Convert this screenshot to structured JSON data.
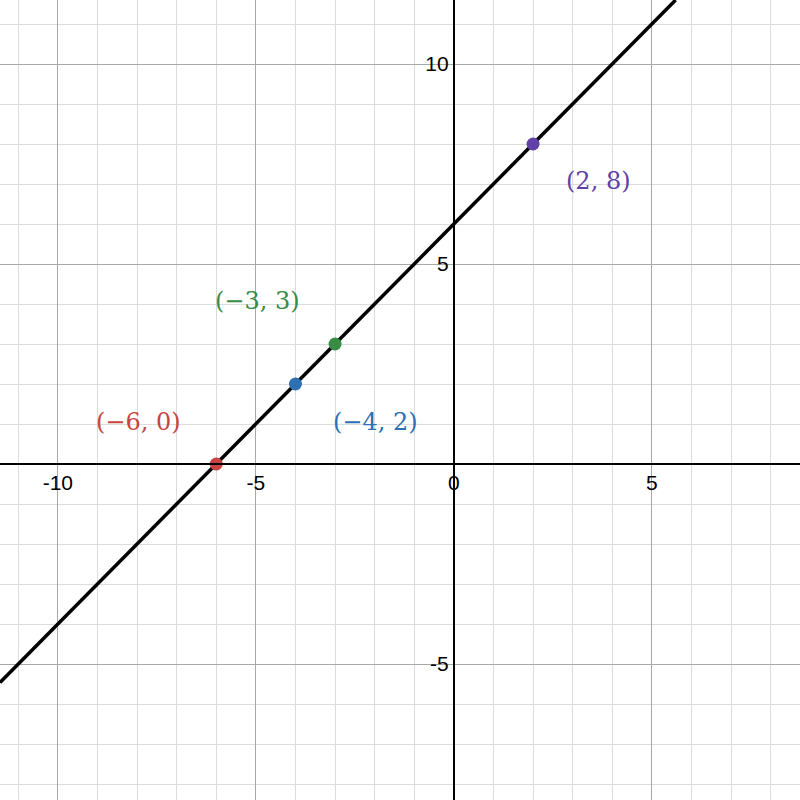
{
  "chart_data": {
    "type": "line",
    "x": [
      -11.46,
      5.6
    ],
    "values": [
      -5.46,
      11.6
    ],
    "color": "#000000",
    "xlim": [
      -11.46,
      8.74
    ],
    "ylim": [
      -8.4,
      11.6
    ],
    "xticks": [
      -10,
      -5,
      0,
      5
    ],
    "yticks": [
      -5,
      5,
      10
    ],
    "grid": true,
    "points": [
      {
        "x": -6,
        "y": 0,
        "label": "(−6, 0)",
        "color": "#c74440"
      },
      {
        "x": -4,
        "y": 2,
        "label": "(−4, 2)",
        "color": "#2d70b3"
      },
      {
        "x": -3,
        "y": 3,
        "label": "(−3, 3)",
        "color": "#388c46"
      },
      {
        "x": 2,
        "y": 8,
        "label": "(2, 8)",
        "color": "#6042a6"
      }
    ]
  }
}
